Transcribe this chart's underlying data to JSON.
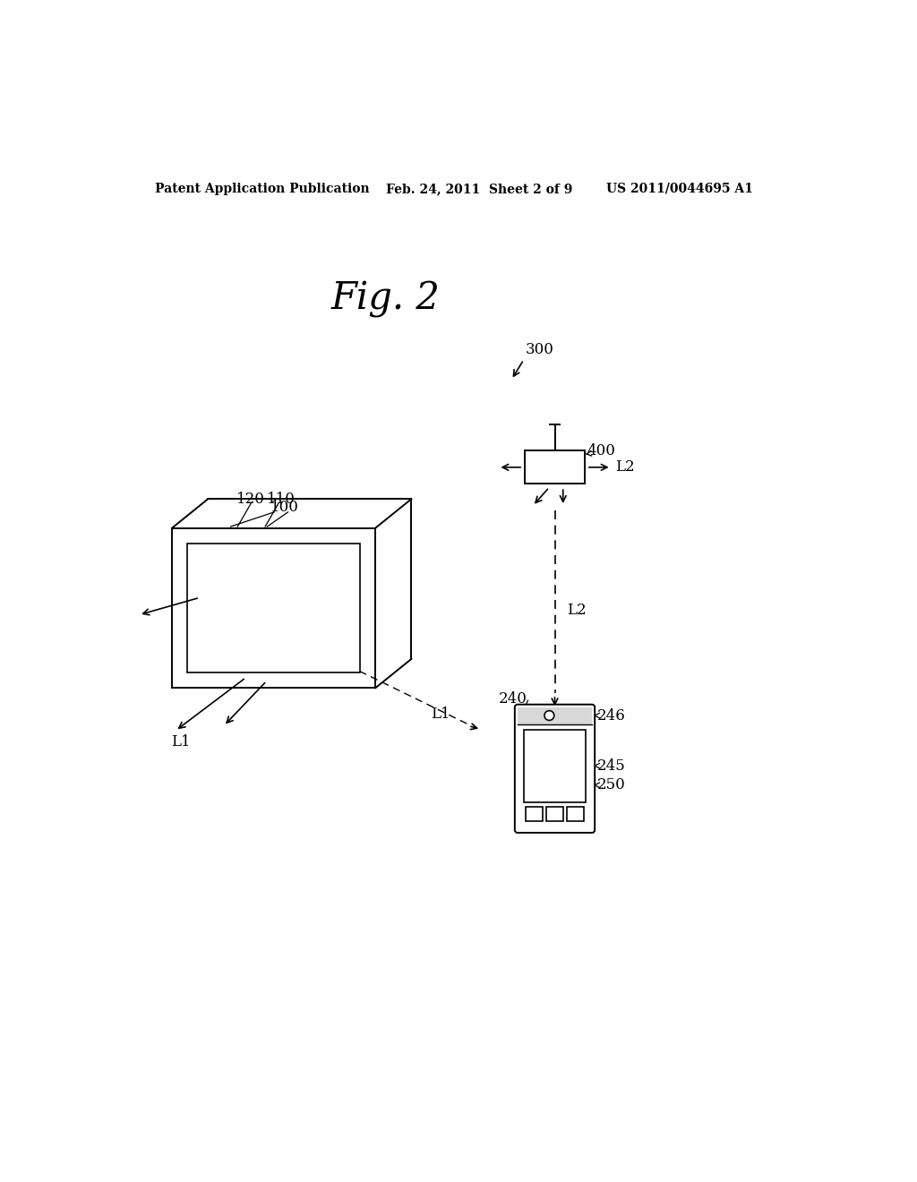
{
  "background_color": "#ffffff",
  "header_left": "Patent Application Publication",
  "header_center": "Feb. 24, 2011  Sheet 2 of 9",
  "header_right": "US 2011/0044695 A1",
  "fig_label": "Fig. 2",
  "label_300": "300",
  "label_400": "400",
  "label_100": "100",
  "label_120": "120",
  "label_110": "110",
  "label_240": "240",
  "label_246": "246",
  "label_245": "245",
  "label_250": "250",
  "label_L1a": "L1",
  "label_L1b": "L1",
  "label_L2a": "L2",
  "label_L2b": "L2"
}
